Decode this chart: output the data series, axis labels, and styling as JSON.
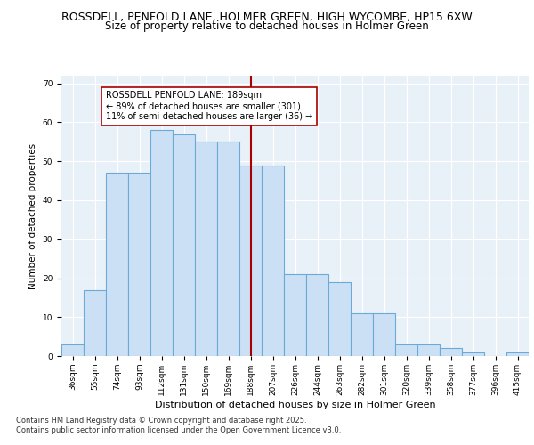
{
  "title": "ROSSDELL, PENFOLD LANE, HOLMER GREEN, HIGH WYCOMBE, HP15 6XW",
  "subtitle": "Size of property relative to detached houses in Holmer Green",
  "xlabel": "Distribution of detached houses by size in Holmer Green",
  "ylabel": "Number of detached properties",
  "categories": [
    "36sqm",
    "55sqm",
    "74sqm",
    "93sqm",
    "112sqm",
    "131sqm",
    "150sqm",
    "169sqm",
    "188sqm",
    "207sqm",
    "226sqm",
    "244sqm",
    "263sqm",
    "282sqm",
    "301sqm",
    "320sqm",
    "339sqm",
    "358sqm",
    "377sqm",
    "396sqm",
    "415sqm"
  ],
  "bar_values": [
    3,
    17,
    47,
    47,
    58,
    57,
    55,
    55,
    49,
    49,
    21,
    21,
    19,
    11,
    11,
    3,
    3,
    2,
    1,
    0,
    1
  ],
  "bar_color": "#cce0f5",
  "bar_edge_color": "#6aaad4",
  "vline_index": 8,
  "vline_color": "#aa0000",
  "annotation_text": "ROSSDELL PENFOLD LANE: 189sqm\n← 89% of detached houses are smaller (301)\n11% of semi-detached houses are larger (36) →",
  "annotation_box_color": "#ffffff",
  "annotation_box_edge": "#aa0000",
  "ylim": [
    0,
    72
  ],
  "yticks": [
    0,
    10,
    20,
    30,
    40,
    50,
    60,
    70
  ],
  "background_color": "#e8f0f8",
  "footer": "Contains HM Land Registry data © Crown copyright and database right 2025.\nContains public sector information licensed under the Open Government Licence v3.0.",
  "title_fontsize": 9,
  "subtitle_fontsize": 8.5,
  "xlabel_fontsize": 8,
  "ylabel_fontsize": 7.5,
  "tick_fontsize": 6.5,
  "annotation_fontsize": 7,
  "footer_fontsize": 6
}
